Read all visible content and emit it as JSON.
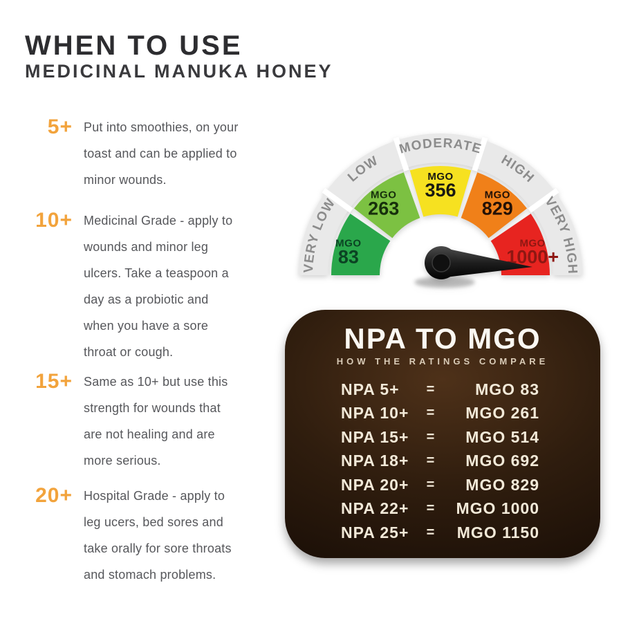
{
  "header": {
    "title": "WHEN TO USE",
    "subtitle": "MEDICINAL MANUKA HONEY"
  },
  "usage_list": {
    "accent_color": "#f2a33c",
    "items": [
      {
        "grade": "5+",
        "description": "Put into smoothies, on your\ntoast and can be applied to\nminor wounds."
      },
      {
        "grade": "10+",
        "description": "Medicinal Grade - apply to\nwounds and minor leg\nulcers. Take a teaspoon a\nday as a probiotic and\nwhen you have a sore\nthroat or cough."
      },
      {
        "grade": "15+",
        "description": "Same as 10+ but use this\nstrength for wounds that\nare not healing and are\nmore serious."
      },
      {
        "grade": "20+",
        "description": "Hospital Grade - apply to\nleg ucers, bed sores and\ntake orally for sore throats\nand stomach problems."
      }
    ]
  },
  "chart_data": [
    {
      "type": "gauge",
      "title": "MGO strength gauge",
      "value_prefix": "MGO",
      "ring_color": "#e9e9e9",
      "ring_label_color": "#8c8c8c",
      "angle_span_deg": 180,
      "segments": [
        {
          "band": "VERY LOW",
          "value": "83",
          "color": "#2aa74b",
          "label_color": "#0b4323"
        },
        {
          "band": "LOW",
          "value": "263",
          "color": "#7cc142",
          "label_color": "#17300c"
        },
        {
          "band": "MODERATE",
          "value": "356",
          "color": "#f6e120",
          "label_color": "#191912"
        },
        {
          "band": "HIGH",
          "value": "829",
          "color": "#f08019",
          "label_color": "#241106"
        },
        {
          "band": "VERY HIGH",
          "value": "1000+",
          "color": "#e72420",
          "label_color": "#8e1712"
        }
      ],
      "needle": {
        "points_to": "VERY HIGH",
        "color": "#1c1c1c"
      }
    },
    {
      "type": "table",
      "title": "NPA TO MGO",
      "subtitle": "HOW THE RATINGS COMPARE",
      "columns": [
        "NPA",
        "equals",
        "MGO"
      ],
      "rows": [
        [
          "NPA 5+",
          "=",
          "MGO 83"
        ],
        [
          "NPA 10+",
          "=",
          "MGO 261"
        ],
        [
          "NPA 15+",
          "=",
          "MGO 514"
        ],
        [
          "NPA 18+",
          "=",
          "MGO 692"
        ],
        [
          "NPA 20+",
          "=",
          "MGO 829"
        ],
        [
          "NPA 22+",
          "=",
          "MGO 1000"
        ],
        [
          "NPA 25+",
          "=",
          "MGO 1150"
        ]
      ],
      "bg_dark": "#150b05",
      "bg_light": "#4e3119",
      "text_color": "#f2e9d8"
    }
  ]
}
